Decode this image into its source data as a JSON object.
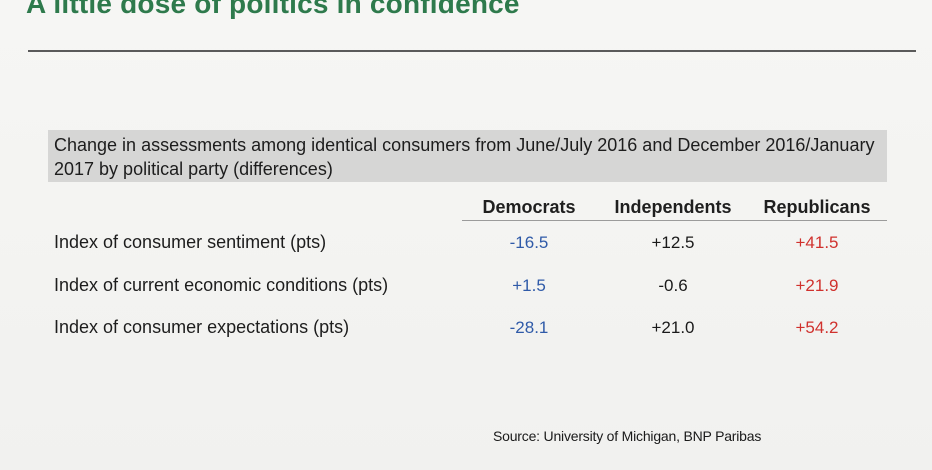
{
  "title": "A little dose of politics in confidence",
  "caption": "Change in assessments among identical consumers from June/July 2016 and December 2016/January 2017 by political party (differences)",
  "columns": [
    "Democrats",
    "Independents",
    "Republicans"
  ],
  "rows": [
    {
      "label": "Index of consumer sentiment (pts)",
      "values": [
        "-16.5",
        "+12.5",
        "+41.5"
      ]
    },
    {
      "label": "Index of current economic conditions (pts)",
      "values": [
        "+1.5",
        "-0.6",
        "+21.9"
      ]
    },
    {
      "label": "Index of consumer expectations (pts)",
      "values": [
        "-28.1",
        "+21.0",
        "+54.2"
      ]
    }
  ],
  "colors": {
    "title": "#2e7a4c",
    "democrats": "#2f5aa8",
    "independents": "#1a1a1a",
    "republicans": "#d0312d"
  },
  "source": "Source: University of Michigan, BNP Paribas"
}
